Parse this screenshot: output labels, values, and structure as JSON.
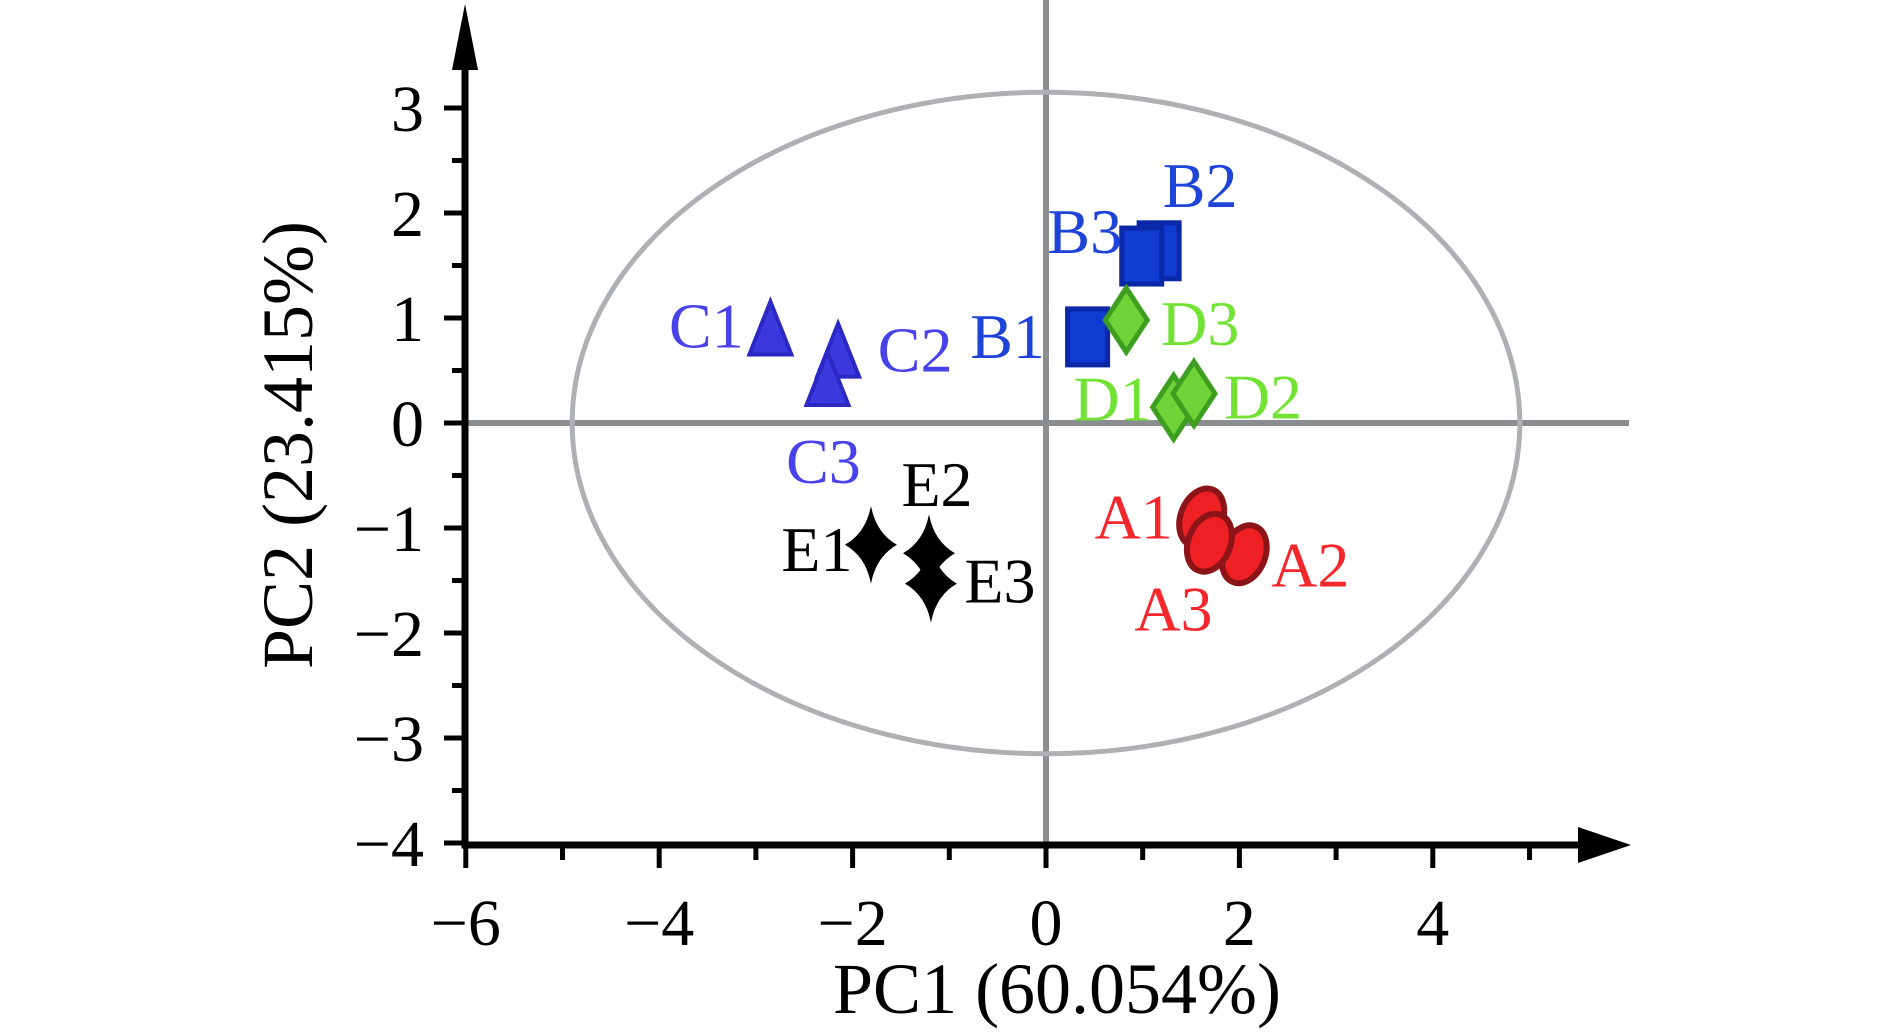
{
  "colors": {
    "axis": "#000000",
    "zero_lines": "#8b8e91",
    "ellipse": "#aeb0b3",
    "background": "#ffffff"
  },
  "chart_data": {
    "type": "scatter",
    "title": "",
    "xlabel": "PC1 (60.054%)",
    "ylabel": "PC2 (23.415%)",
    "xlim": [
      -6,
      6.1
    ],
    "ylim": [
      -4,
      4
    ],
    "grid": "off",
    "legend": "none",
    "x_major_ticks": [
      -6,
      -4,
      -2,
      0,
      2,
      4
    ],
    "x_major_tick_labels": [
      "−6",
      "−4",
      "−2",
      "0",
      "2",
      "4"
    ],
    "x_minor_ticks": [
      -5,
      -3,
      -1,
      1,
      3,
      5
    ],
    "y_major_ticks": [
      3,
      2,
      1,
      0,
      -1,
      -2,
      -3,
      -4
    ],
    "y_major_tick_labels": [
      "3",
      "2",
      "1",
      "0",
      "−1",
      "−2",
      "−3",
      "−4"
    ],
    "y_minor_ticks": [
      2.5,
      1.5,
      0.5,
      -0.5,
      -1.5,
      -2.5,
      -3.5
    ],
    "confidence_ellipse": {
      "cx": 0,
      "cy": 0,
      "rx": 4.9,
      "ry": 3.15
    },
    "series": [
      {
        "name": "B",
        "marker": "square",
        "fill": "#0f3bd3",
        "stroke": "#0a28a5",
        "label_color": "#1e43d9",
        "points": [
          {
            "label": "B2",
            "x": 1.17,
            "y": 1.64,
            "ldx": 41,
            "ldy": -67
          },
          {
            "label": "B3",
            "x": 0.99,
            "y": 1.59,
            "ldx": -57,
            "ldy": -26
          },
          {
            "label": "B1",
            "x": 0.43,
            "y": 0.82,
            "ldx": -80,
            "ldy": -2
          }
        ]
      },
      {
        "name": "D",
        "marker": "diamond",
        "fill": "#6fd437",
        "stroke": "#3e9e1f",
        "label_color": "#72e335",
        "points": [
          {
            "label": "D3",
            "x": 0.83,
            "y": 0.98,
            "ldx": 74,
            "ldy": 2
          },
          {
            "label": "D1",
            "x": 1.32,
            "y": 0.15,
            "ldx": -61,
            "ldy": -10
          },
          {
            "label": "D2",
            "x": 1.53,
            "y": 0.28,
            "ldx": 69,
            "ldy": 2
          }
        ]
      },
      {
        "name": "C",
        "marker": "triangle",
        "fill": "#3c38e0",
        "stroke": "#2b28c4",
        "label_color": "#4742ea",
        "points": [
          {
            "label": "C1",
            "x": -2.85,
            "y": 0.89,
            "ldx": -64,
            "ldy": -5
          },
          {
            "label": "C2",
            "x": -2.15,
            "y": 0.68,
            "ldx": 77,
            "ldy": -3
          },
          {
            "label": "C3",
            "x": -2.26,
            "y": 0.41,
            "ldx": -4,
            "ldy": 80
          }
        ]
      },
      {
        "name": "E",
        "marker": "star4",
        "fill": "#000000",
        "stroke": "#000000",
        "label_color": "#000000",
        "points": [
          {
            "label": "E1",
            "x": -1.81,
            "y": -1.16,
            "ldx": -54,
            "ldy": 3
          },
          {
            "label": "E2",
            "x": -1.21,
            "y": -1.24,
            "ldx": 8,
            "ldy": -70
          },
          {
            "label": "E3",
            "x": -1.19,
            "y": -1.53,
            "ldx": 69,
            "ldy": -4
          }
        ]
      },
      {
        "name": "A",
        "marker": "oval",
        "fill": "#ee2024",
        "stroke": "#8c1317",
        "label_color": "#f4282c",
        "points": [
          {
            "label": "A1",
            "x": 1.61,
            "y": -0.9,
            "ldx": -68,
            "ldy": -2
          },
          {
            "label": "A2",
            "x": 2.05,
            "y": -1.25,
            "ldx": 66,
            "ldy": 9
          },
          {
            "label": "A3",
            "x": 1.69,
            "y": -1.14,
            "ldx": -36,
            "ldy": 65
          }
        ]
      }
    ]
  }
}
